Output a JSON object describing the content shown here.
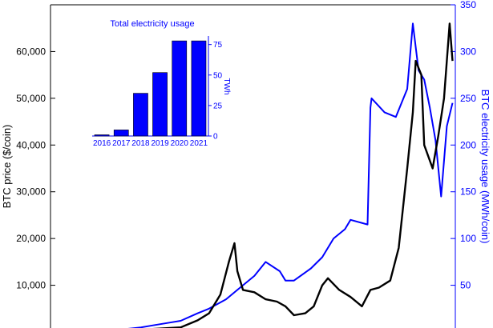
{
  "colors": {
    "price": "#000000",
    "electricity": "#0000ff",
    "axis": "#000000"
  },
  "chart_data": [
    {
      "type": "line",
      "title": "",
      "xlabel": "",
      "ylabel": "BTC price ($/coin)",
      "y2label": "BTC electricity usage (MWh/coin)",
      "ylim": [
        0,
        70000
      ],
      "y2lim": [
        0,
        350
      ],
      "xlim": [
        2014.7,
        2021.85
      ],
      "yticks": [
        10000,
        20000,
        30000,
        40000,
        50000,
        60000
      ],
      "ytick_labels": [
        "10,000",
        "20,000",
        "30,000",
        "40,000",
        "50,000",
        "60,000"
      ],
      "y2ticks": [
        50,
        100,
        150,
        200,
        250,
        300,
        350
      ],
      "y2tick_labels": [
        "50",
        "100",
        "150",
        "200",
        "250",
        "300",
        "350"
      ],
      "grid": false,
      "series": [
        {
          "color": "#000000",
          "axis": "left",
          "x": [
            2015.0,
            2015.5,
            2016.0,
            2016.5,
            2017.0,
            2017.3,
            2017.5,
            2017.7,
            2017.85,
            2017.95,
            2018.0,
            2018.1,
            2018.3,
            2018.5,
            2018.7,
            2018.85,
            2019.0,
            2019.2,
            2019.35,
            2019.5,
            2019.6,
            2019.8,
            2020.0,
            2020.2,
            2020.35,
            2020.5,
            2020.7,
            2020.85,
            2021.0,
            2021.1,
            2021.15,
            2021.25,
            2021.3,
            2021.45,
            2021.55,
            2021.65,
            2021.75,
            2021.8
          ],
          "y": [
            200,
            250,
            400,
            650,
            1000,
            2500,
            4000,
            8000,
            15000,
            19000,
            13000,
            9000,
            8500,
            7000,
            6500,
            5500,
            3600,
            4000,
            5500,
            10000,
            11500,
            9000,
            7500,
            5500,
            9000,
            9500,
            11000,
            18000,
            35000,
            47000,
            58000,
            55000,
            40000,
            35000,
            42000,
            50000,
            66000,
            58000
          ]
        },
        {
          "color": "#0000ff",
          "axis": "right",
          "x": [
            2015.0,
            2015.5,
            2016.0,
            2016.3,
            2016.5,
            2016.8,
            2017.0,
            2017.3,
            2017.5,
            2017.8,
            2018.0,
            2018.3,
            2018.5,
            2018.75,
            2018.85,
            2019.0,
            2019.3,
            2019.5,
            2019.7,
            2019.9,
            2020.0,
            2020.3,
            2020.35,
            2020.37,
            2020.6,
            2020.8,
            2021.0,
            2021.1,
            2021.2,
            2021.3,
            2021.4,
            2021.5,
            2021.6,
            2021.7,
            2021.8
          ],
          "y": [
            0,
            1,
            3,
            5,
            7,
            10,
            12,
            20,
            25,
            35,
            45,
            60,
            75,
            65,
            55,
            55,
            68,
            80,
            100,
            110,
            120,
            115,
            240,
            250,
            235,
            230,
            260,
            330,
            280,
            270,
            240,
            205,
            145,
            220,
            245
          ]
        }
      ]
    },
    {
      "type": "bar",
      "title": "Total electricity usage",
      "xlabel": "",
      "ylabel": "TWh",
      "categories": [
        "2016",
        "2017",
        "2018",
        "2019",
        "2020",
        "2021"
      ],
      "values": [
        1,
        5,
        35,
        52,
        78,
        78
      ],
      "ylim": [
        0,
        82
      ],
      "yticks": [
        0,
        25,
        50,
        75
      ],
      "ytick_labels": [
        "0",
        "25",
        "50",
        "75"
      ],
      "color": "#0000ff"
    }
  ]
}
